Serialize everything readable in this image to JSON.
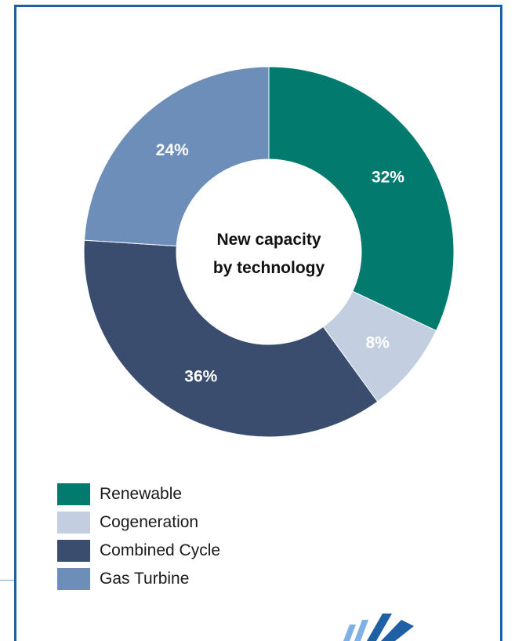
{
  "chart_data": {
    "type": "pie",
    "variant": "donut",
    "center_label": [
      "New capacity",
      "by technology"
    ],
    "slices": [
      {
        "label": "Renewable",
        "value": 32,
        "display": "32%",
        "color": "#027a6e"
      },
      {
        "label": "Cogeneration",
        "value": 8,
        "display": "8%",
        "color": "#c3cfe1"
      },
      {
        "label": "Combined Cycle",
        "value": 36,
        "display": "36%",
        "color": "#3a4d6e"
      },
      {
        "label": "Gas Turbine",
        "value": 24,
        "display": "24%",
        "color": "#6e8eba"
      }
    ],
    "start_angle_deg": 0,
    "direction": "clockwise",
    "legend_position": "bottom-left"
  },
  "colors": {
    "frame_border": "#1f5fa3",
    "logo_light": "#7fb0e6",
    "logo_dark": "#1f5fa3"
  }
}
